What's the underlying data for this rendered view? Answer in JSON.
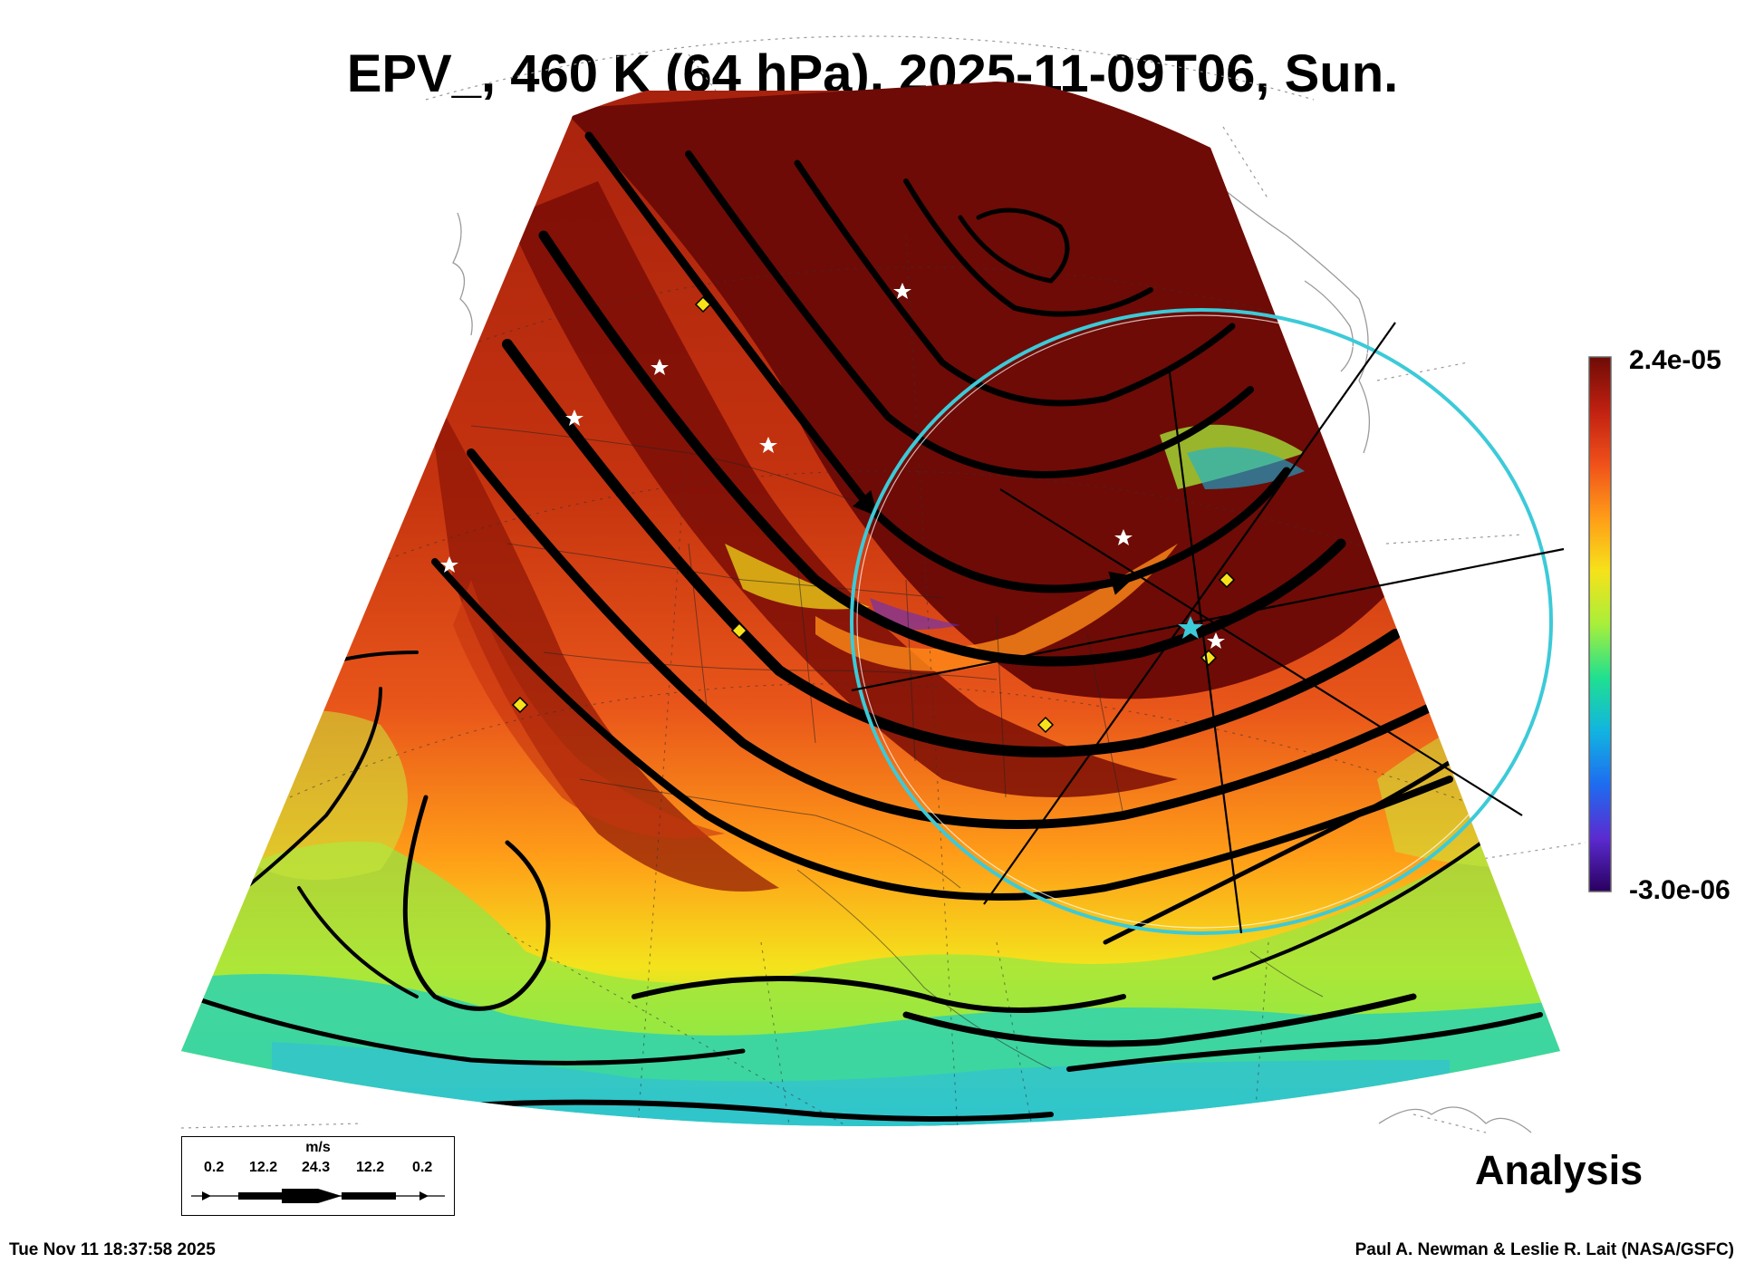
{
  "title": "EPV_, 460 K (64 hPa), 2025-11-09T06, Sun.",
  "colorbar": {
    "max_label": "2.4e-05",
    "min_label": "-3.0e-06",
    "colors": [
      "#2a0060",
      "#5b2bd0",
      "#1e6cf0",
      "#12b4e0",
      "#1fe090",
      "#a8ef3a",
      "#f6e21a",
      "#ff9c18",
      "#f0501a",
      "#c02010",
      "#6e0b06"
    ]
  },
  "map": {
    "projection_circle_color": "#3ccad8",
    "high_pv_color": "#6e0b06",
    "low_pv_color": "#2fd2b0"
  },
  "wind_legend": {
    "unit": "m/s",
    "ticks": [
      "0.2",
      "12.2",
      "24.3",
      "12.2",
      "0.2"
    ]
  },
  "stamp": "Analysis",
  "footer": {
    "timestamp": "Tue Nov 11 18:37:58 2025",
    "credit": "Paul A. Newman & Leslie R. Lait (NASA/GSFC)"
  }
}
